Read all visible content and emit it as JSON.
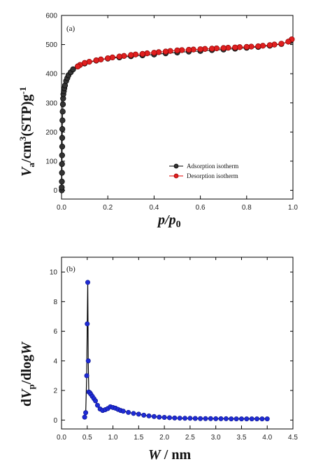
{
  "chart_data": [
    {
      "type": "scatter",
      "panel_label": "(a)",
      "xlabel": {
        "main": "p",
        "slash": "/",
        "second": "p",
        "sub": "0"
      },
      "ylabel": {
        "main": "V",
        "sub": "a",
        "rest1": "/cm",
        "sup": "3",
        "rest2": "(STP)g",
        "sup2": "-1"
      },
      "xlim": [
        0,
        1
      ],
      "ylim": [
        -30,
        600
      ],
      "x_ticks": [
        "0.0",
        "0.2",
        "0.4",
        "0.6",
        "0.8",
        "1.0"
      ],
      "x_tick_values": [
        0,
        0.2,
        0.4,
        0.6,
        0.8,
        1.0
      ],
      "y_ticks": [
        "0",
        "100",
        "200",
        "300",
        "400",
        "500",
        "600"
      ],
      "y_tick_values": [
        0,
        100,
        200,
        300,
        400,
        500,
        600
      ],
      "legend_position": "bottom-right",
      "series": [
        {
          "name": "Adsorption isotherm",
          "color": "#000000",
          "fill": "#333333",
          "x": [
            0.001,
            0.001,
            0.0015,
            0.002,
            0.002,
            0.0025,
            0.003,
            0.003,
            0.0035,
            0.004,
            0.005,
            0.006,
            0.007,
            0.008,
            0.01,
            0.012,
            0.015,
            0.02,
            0.025,
            0.03,
            0.04,
            0.05,
            0.07,
            0.1,
            0.15,
            0.2,
            0.25,
            0.3,
            0.35,
            0.4,
            0.45,
            0.5,
            0.55,
            0.6,
            0.65,
            0.7,
            0.75,
            0.8,
            0.85,
            0.9,
            0.95,
            0.99
          ],
          "y": [
            0,
            10,
            30,
            60,
            90,
            120,
            150,
            180,
            210,
            240,
            270,
            295,
            315,
            330,
            340,
            350,
            360,
            375,
            385,
            395,
            405,
            415,
            425,
            435,
            445,
            452,
            456,
            460,
            463,
            466,
            470,
            473,
            476,
            478,
            481,
            483,
            486,
            489,
            492,
            496,
            502,
            512
          ]
        },
        {
          "name": "Desorption isotherm",
          "color": "#e00000",
          "fill": "#e02020",
          "x": [
            0.995,
            0.98,
            0.95,
            0.92,
            0.9,
            0.87,
            0.85,
            0.82,
            0.8,
            0.77,
            0.75,
            0.72,
            0.7,
            0.67,
            0.65,
            0.62,
            0.6,
            0.57,
            0.55,
            0.52,
            0.5,
            0.47,
            0.45,
            0.42,
            0.4,
            0.37,
            0.35,
            0.32,
            0.3,
            0.27,
            0.25,
            0.22,
            0.2,
            0.17,
            0.15,
            0.12,
            0.1,
            0.08,
            0.07
          ],
          "y": [
            518,
            510,
            503,
            500,
            498,
            496,
            494,
            493,
            492,
            491,
            490,
            489,
            488,
            487,
            486,
            485,
            484,
            483,
            482,
            481,
            480,
            478,
            476,
            474,
            472,
            470,
            468,
            466,
            464,
            461,
            459,
            456,
            453,
            449,
            446,
            441,
            437,
            430,
            425
          ]
        }
      ]
    },
    {
      "type": "line",
      "panel_label": "(b)",
      "xlabel": {
        "main": "W",
        "rest": " / nm"
      },
      "ylabel": {
        "pre": "d",
        "main": "V",
        "sub": "p",
        "rest": "/dlog",
        "last": "W"
      },
      "xlim": [
        0,
        4.5
      ],
      "ylim": [
        -0.6,
        11
      ],
      "x_ticks": [
        "0.0",
        "0.5",
        "1.0",
        "1.5",
        "2.0",
        "2.5",
        "3.0",
        "3.5",
        "4.0",
        "4.5"
      ],
      "x_tick_values": [
        0,
        0.5,
        1.0,
        1.5,
        2.0,
        2.5,
        3.0,
        3.5,
        4.0,
        4.5
      ],
      "y_ticks": [
        "0",
        "2",
        "4",
        "6",
        "8",
        "10"
      ],
      "y_tick_values": [
        0,
        2,
        4,
        6,
        8,
        10
      ],
      "line_color": "#000000",
      "marker_color": "#1f2bd6",
      "x": [
        0.45,
        0.47,
        0.49,
        0.5,
        0.51,
        0.52,
        0.53,
        0.55,
        0.57,
        0.6,
        0.63,
        0.66,
        0.7,
        0.75,
        0.8,
        0.85,
        0.9,
        0.95,
        1.0,
        1.05,
        1.1,
        1.15,
        1.2,
        1.3,
        1.4,
        1.5,
        1.6,
        1.7,
        1.8,
        1.9,
        2.0,
        2.1,
        2.2,
        2.3,
        2.4,
        2.5,
        2.6,
        2.7,
        2.8,
        2.9,
        3.0,
        3.1,
        3.2,
        3.3,
        3.4,
        3.5,
        3.6,
        3.7,
        3.8,
        3.9,
        4.0
      ],
      "y": [
        0.2,
        0.5,
        3.0,
        6.5,
        9.3,
        4.0,
        1.9,
        1.85,
        1.75,
        1.6,
        1.45,
        1.3,
        1.0,
        0.75,
        0.65,
        0.7,
        0.78,
        0.9,
        0.85,
        0.8,
        0.72,
        0.65,
        0.6,
        0.52,
        0.45,
        0.4,
        0.33,
        0.28,
        0.24,
        0.2,
        0.18,
        0.16,
        0.14,
        0.13,
        0.12,
        0.12,
        0.11,
        0.1,
        0.1,
        0.1,
        0.09,
        0.09,
        0.09,
        0.08,
        0.08,
        0.08,
        0.08,
        0.08,
        0.08,
        0.08,
        0.08
      ]
    }
  ]
}
